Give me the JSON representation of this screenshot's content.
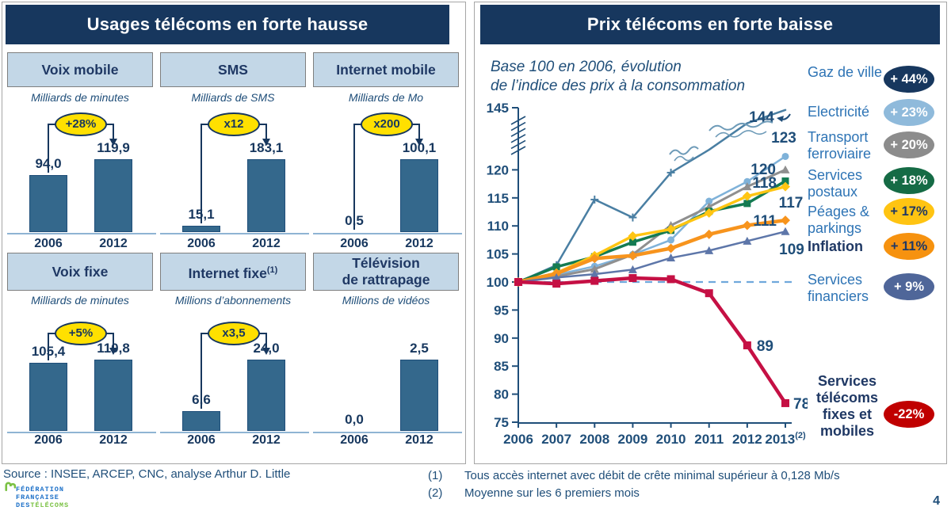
{
  "left_panel": {
    "title": "Usages télécoms en forte hausse",
    "years": [
      "2006",
      "2012"
    ],
    "cards": [
      {
        "title_lines": [
          "Voix mobile"
        ],
        "title_sup": "",
        "unit": "Milliards de minutes",
        "badge": "+28%",
        "label_2006": "94,0",
        "label_2012": "119,9",
        "value_2006": 94.0,
        "value_2012": 119.9
      },
      {
        "title_lines": [
          "SMS"
        ],
        "title_sup": "",
        "unit": "Milliards de SMS",
        "badge": "x12",
        "label_2006": "15,1",
        "label_2012": "183,1",
        "value_2006": 15.1,
        "value_2012": 183.1
      },
      {
        "title_lines": [
          "Internet mobile"
        ],
        "title_sup": "",
        "unit": "Milliards de Mo",
        "badge": "x200",
        "label_2006": "0,5",
        "label_2012": "100,1",
        "value_2006": 0.5,
        "value_2012": 100.1
      },
      {
        "title_lines": [
          "Voix fixe"
        ],
        "title_sup": "",
        "unit": "Milliards de minutes",
        "badge": "+5%",
        "label_2006": "105,4",
        "label_2012": "110,8",
        "value_2006": 105.4,
        "value_2012": 110.8
      },
      {
        "title_lines": [
          "Internet fixe"
        ],
        "title_sup": "(1)",
        "unit": "Millions d’abonnements",
        "badge": "x3,5",
        "label_2006": "6,6",
        "label_2012": "24,0",
        "value_2006": 6.6,
        "value_2012": 24.0
      },
      {
        "title_lines": [
          "Télévision",
          "de rattrapage"
        ],
        "title_sup": "",
        "unit": "Millions de vidéos",
        "badge": null,
        "label_2006": "0,0",
        "label_2012": "2,5",
        "value_2006": 0.0,
        "value_2012": 2.5
      }
    ]
  },
  "right_panel": {
    "title": "Prix télécoms en forte baisse",
    "subtitle_line1": "Base 100 en 2006, évolution",
    "subtitle_line2": "de l’indice des prix à la consommation",
    "legend": [
      {
        "label": "Gaz de ville",
        "change": "+ 44%",
        "badge_bg": "#17375E",
        "badge_fg": "#FFFFFF",
        "bold": false
      },
      {
        "label": "Electricité",
        "change": "+ 23%",
        "badge_bg": "#8FBADB",
        "badge_fg": "#FFFFFF",
        "bold": false
      },
      {
        "label": "Transport ferroviaire",
        "change": "+ 20%",
        "badge_bg": "#8C8C8C",
        "badge_fg": "#FFFFFF",
        "bold": false
      },
      {
        "label": "Services postaux",
        "change": "+ 18%",
        "badge_bg": "#156B45",
        "badge_fg": "#FFFFFF",
        "bold": false
      },
      {
        "label": "Péages & parkings",
        "change": "+ 17%",
        "badge_bg": "#FFC412",
        "badge_fg": "#1F3864",
        "bold": false
      },
      {
        "label": "Inflation",
        "change": "+ 11%",
        "badge_bg": "#F6920F",
        "badge_fg": "#1F3864",
        "bold": true
      },
      {
        "label": "Services financiers",
        "change": "+ 9%",
        "badge_bg": "#4F6699",
        "badge_fg": "#FFFFFF",
        "bold": false
      },
      {
        "label": "Services télécoms fixes et mobiles",
        "change": "-22%",
        "badge_bg": "#C00000",
        "badge_fg": "#FFFFFF",
        "bold": true
      }
    ]
  },
  "chart_data": [
    {
      "type": "bar",
      "title": "Usages télécoms en forte hausse",
      "categories": [
        "2006",
        "2012"
      ],
      "series": [
        {
          "name": "Voix mobile",
          "unit": "Milliards de minutes",
          "values": [
            94.0,
            119.9
          ],
          "change": "+28%"
        },
        {
          "name": "SMS",
          "unit": "Milliards de SMS",
          "values": [
            15.1,
            183.1
          ],
          "change": "x12"
        },
        {
          "name": "Internet mobile",
          "unit": "Milliards de Mo",
          "values": [
            0.5,
            100.1
          ],
          "change": "x200"
        },
        {
          "name": "Voix fixe",
          "unit": "Milliards de minutes",
          "values": [
            105.4,
            110.8
          ],
          "change": "+5%"
        },
        {
          "name": "Internet fixe (1)",
          "unit": "Millions d’abonnements",
          "values": [
            6.6,
            24.0
          ],
          "change": "x3,5"
        },
        {
          "name": "Télévision de rattrapage",
          "unit": "Millions de vidéos",
          "values": [
            0.0,
            2.5
          ],
          "change": null
        }
      ]
    },
    {
      "type": "line",
      "title": "Prix télécoms en forte baisse",
      "subtitle": "Base 100 en 2006, évolution de l’indice des prix à la consommation",
      "x": [
        2006,
        2007,
        2008,
        2009,
        2010,
        2011,
        2012,
        2013
      ],
      "x_labels": [
        "2006",
        "2007",
        "2008",
        "2009",
        "2010",
        "2011",
        "2012",
        "2013"
      ],
      "x_last_superscript": "(2)",
      "ylim": [
        75,
        145
      ],
      "y_ticks": [
        75,
        80,
        85,
        90,
        95,
        100,
        105,
        110,
        115,
        120,
        145
      ],
      "axis_break_between": [
        122,
        145
      ],
      "dashed_reference_line": 100,
      "series": [
        {
          "name": "Gaz de ville",
          "change": "+ 44%",
          "color": "#4A7FA3",
          "marker": "plus",
          "end_label": "144",
          "values": [
            100,
            103,
            114.7,
            111.5,
            119.5,
            126,
            138,
            144
          ]
        },
        {
          "name": "Electricité",
          "change": "+ 23%",
          "color": "#7FB2D9",
          "marker": "circle",
          "end_label": "123",
          "values": [
            100,
            101.3,
            102.8,
            104.9,
            107.5,
            114.4,
            117.9,
            123
          ]
        },
        {
          "name": "Transport ferroviaire",
          "change": "+ 20%",
          "color": "#8F8F8F",
          "marker": "triangle",
          "end_label": "120",
          "values": [
            100,
            101,
            102.3,
            104.9,
            110.1,
            113.4,
            117,
            120
          ]
        },
        {
          "name": "Services postaux",
          "change": "+ 18%",
          "color": "#147B52",
          "marker": "square",
          "end_label": "118",
          "values": [
            100,
            102.7,
            104.5,
            107.1,
            109.2,
            112.6,
            114,
            118
          ]
        },
        {
          "name": "Péages & parkings",
          "change": "+ 17%",
          "color": "#FFC512",
          "marker": "diamond",
          "end_label": "117",
          "values": [
            100,
            101.6,
            104.7,
            108.2,
            109.4,
            112.3,
            115.3,
            117
          ]
        },
        {
          "name": "Inflation",
          "change": "+ 11%",
          "color": "#F7941D",
          "marker": "diamond",
          "end_label": "111",
          "values": [
            100,
            101.5,
            104.2,
            104.7,
            106,
            108.5,
            110.1,
            111
          ]
        },
        {
          "name": "Services financiers",
          "change": "+ 9%",
          "color": "#5D76A9",
          "marker": "triangle",
          "end_label": "109",
          "values": [
            100,
            100.8,
            101.4,
            102.2,
            104.3,
            105.6,
            107.3,
            109
          ]
        },
        {
          "name": "Services télécoms fixes et mobiles",
          "change": "-22%",
          "color": "#C51044",
          "marker": "square",
          "end_label": "78",
          "mid_label": "89",
          "values": [
            100,
            99.7,
            100.2,
            100.7,
            100.5,
            98,
            88.7,
            78.4
          ]
        }
      ]
    }
  ],
  "footer": {
    "source": "Source : INSEE, ARCEP, CNC, analyse Arthur D. Little",
    "notes": [
      {
        "mark": "(1)",
        "text": "Tous accès internet avec débit de crête minimal supérieur à 0,128 Mb/s"
      },
      {
        "mark": "(2)",
        "text": "Moyenne sur les 6 premiers mois"
      }
    ],
    "logo_line1": "FÉDÉRATION",
    "logo_line2": "FRANÇAISE",
    "logo_line3a": "DES",
    "logo_line3b": "TÉLÉCOMS",
    "page_number": "4"
  }
}
